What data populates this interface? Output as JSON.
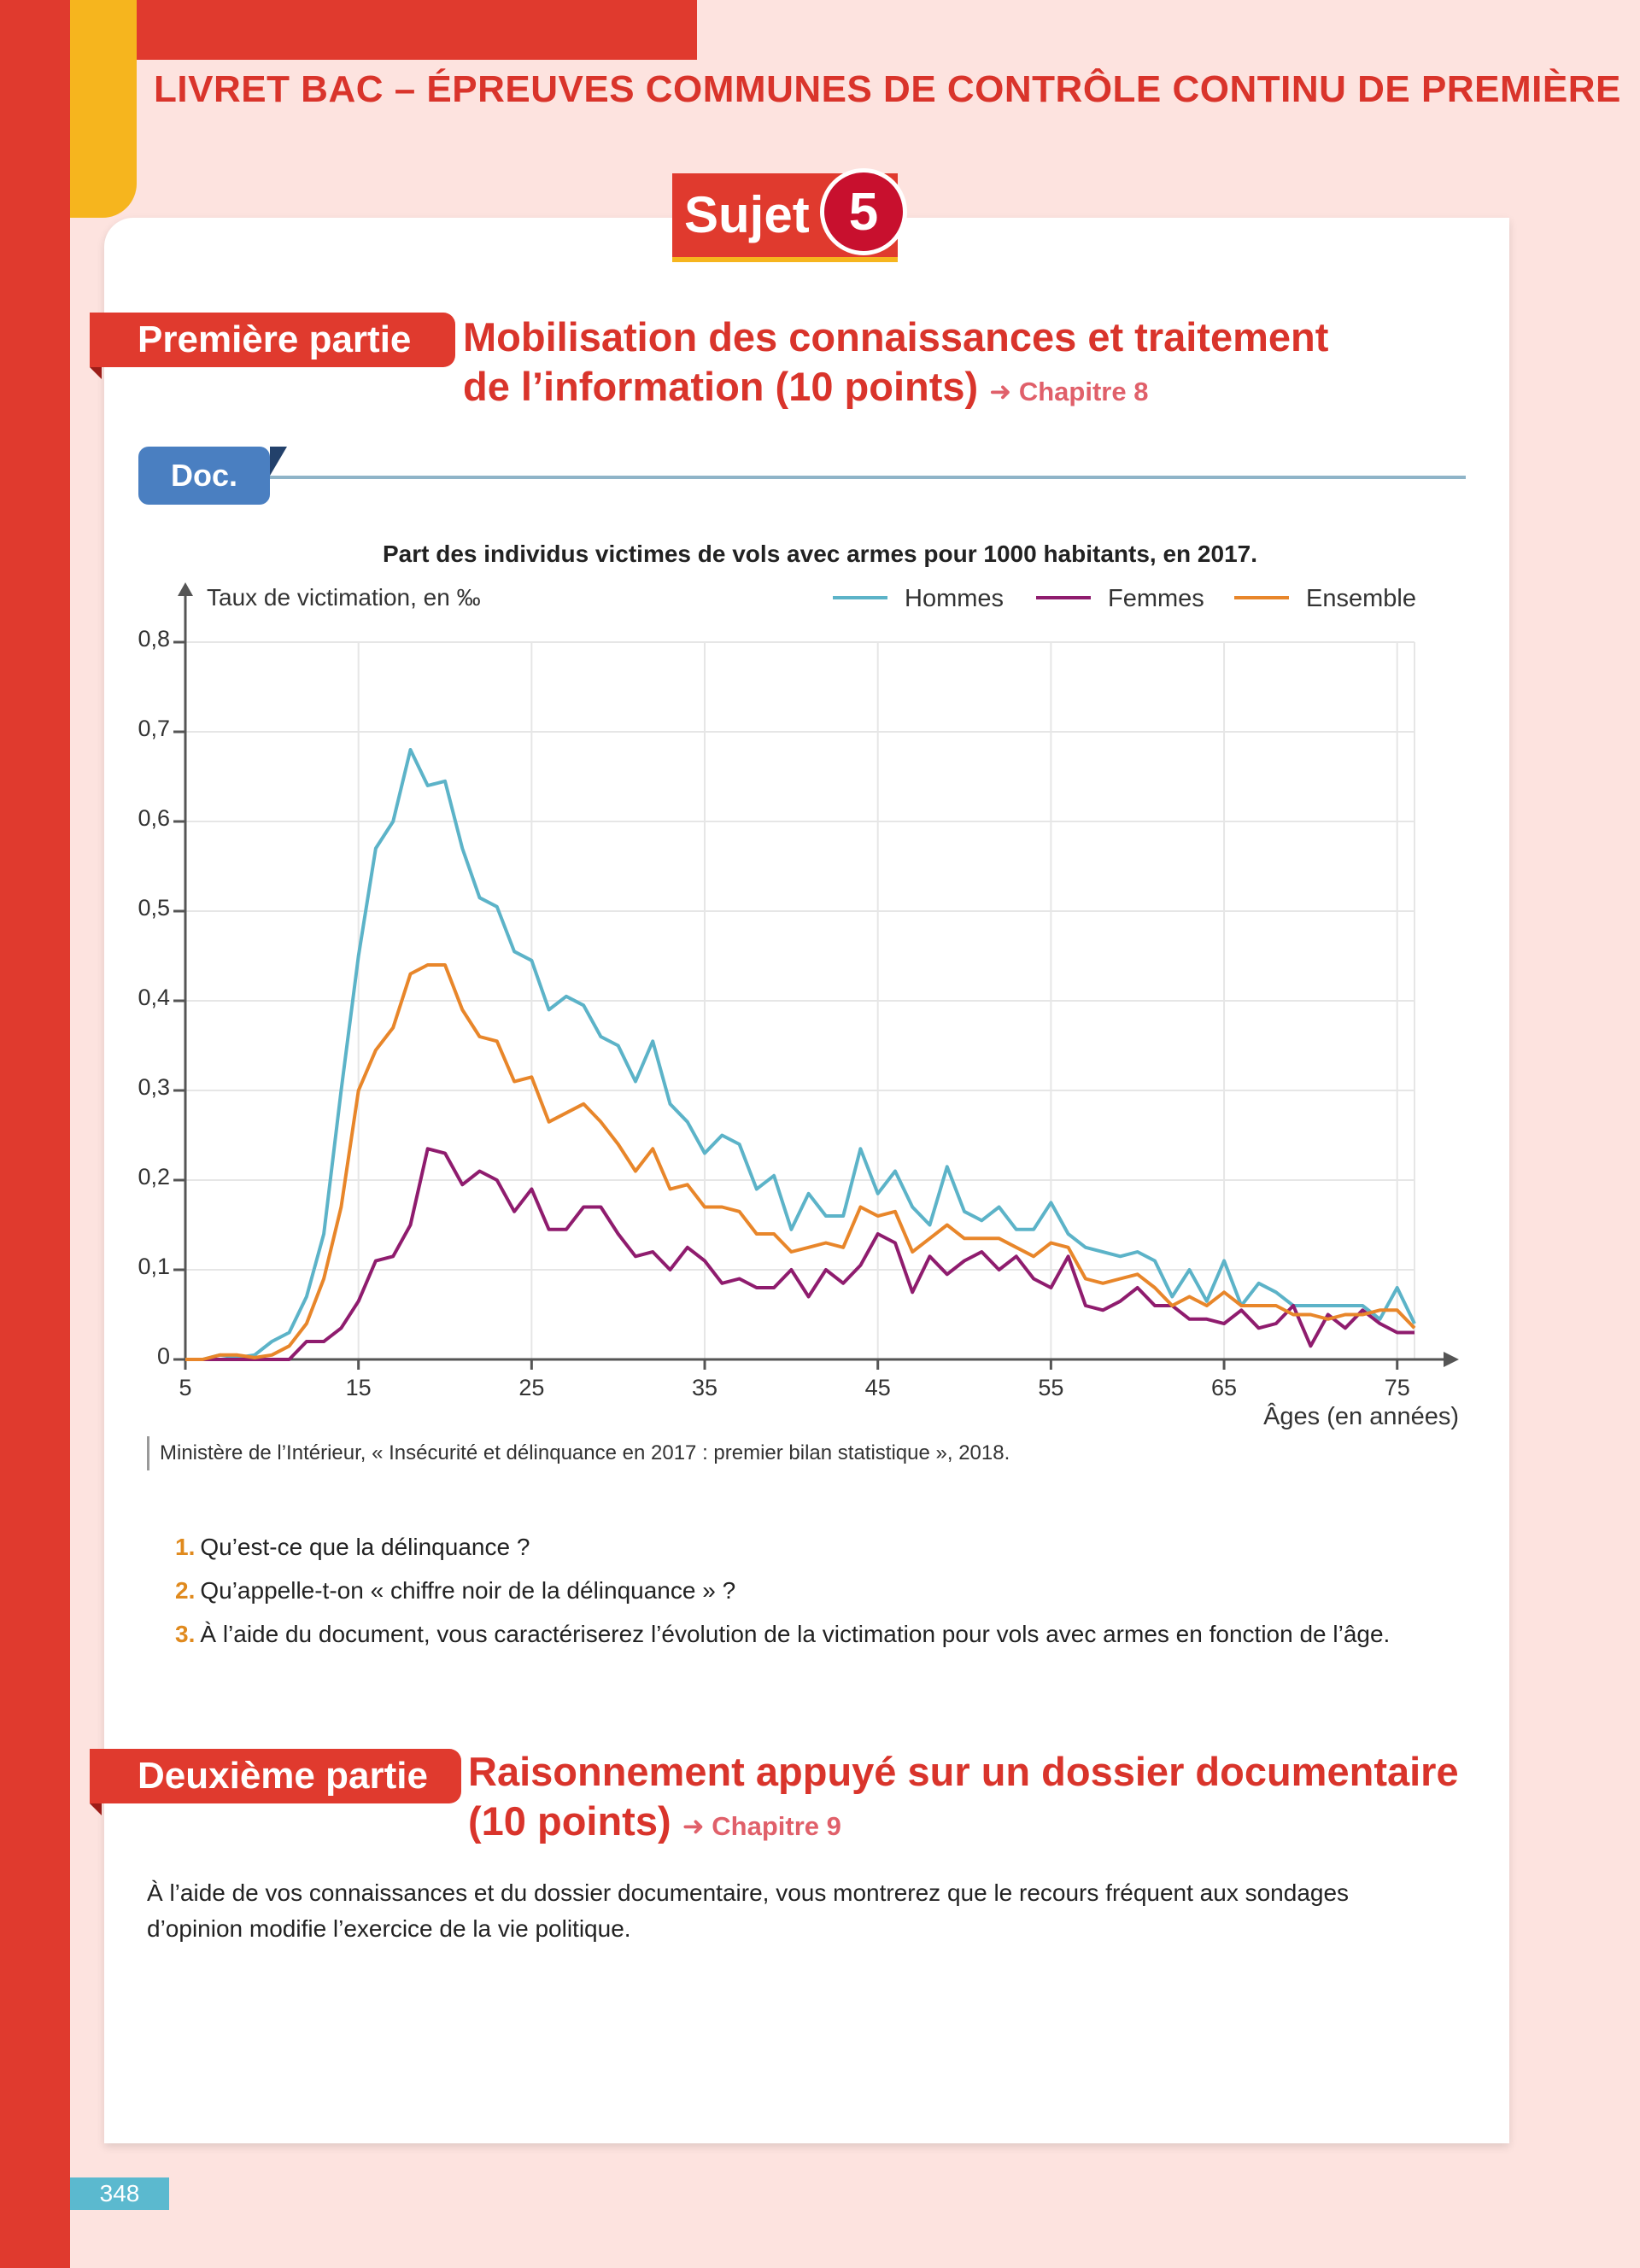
{
  "header": {
    "title": "LIVRET BAC – ÉPREUVES COMMUNES DE CONTRÔLE CONTINU DE PREMIÈRE",
    "sujet_label": "Sujet",
    "sujet_number": "5"
  },
  "part1": {
    "tag": "Première partie",
    "title_line1": "Mobilisation des connaissances et traitement",
    "title_line2": "de l’information (10 points)",
    "chapter": "➜ Chapitre 8"
  },
  "doc": {
    "label": "Doc.",
    "source": "Ministère de l’Intérieur, « Insécurité et délinquance en 2017 : premier bilan statistique », 2018."
  },
  "chart_data": {
    "type": "line",
    "title": "Part des individus victimes de vols avec armes pour 1000 habitants, en 2017.",
    "ylabel": "Taux de victimation, en ‰",
    "xlabel": "Âges (en années)",
    "xlim": [
      5,
      76
    ],
    "ylim": [
      0,
      0.8
    ],
    "x_ticks": [
      "5",
      "15",
      "25",
      "35",
      "45",
      "55",
      "65",
      "75"
    ],
    "y_ticks": [
      "0",
      "0,1",
      "0,2",
      "0,3",
      "0,4",
      "0,5",
      "0,6",
      "0,7",
      "0,8"
    ],
    "grid": true,
    "legend_position": "top-right",
    "series": [
      {
        "name": "Hommes",
        "color": "#5cb3c8",
        "x": [
          5,
          6,
          7,
          8,
          9,
          10,
          11,
          12,
          13,
          14,
          15,
          16,
          17,
          18,
          19,
          20,
          21,
          22,
          23,
          24,
          25,
          26,
          27,
          28,
          29,
          30,
          31,
          32,
          33,
          34,
          35,
          36,
          37,
          38,
          39,
          40,
          41,
          42,
          43,
          44,
          45,
          46,
          47,
          48,
          49,
          50,
          51,
          52,
          53,
          54,
          55,
          56,
          57,
          58,
          59,
          60,
          61,
          62,
          63,
          64,
          65,
          66,
          67,
          68,
          69,
          70,
          71,
          72,
          73,
          74,
          75,
          76
        ],
        "values": [
          0,
          0,
          0.005,
          0.002,
          0.005,
          0.02,
          0.03,
          0.07,
          0.14,
          0.3,
          0.45,
          0.57,
          0.6,
          0.68,
          0.64,
          0.645,
          0.57,
          0.515,
          0.505,
          0.455,
          0.445,
          0.39,
          0.405,
          0.395,
          0.36,
          0.35,
          0.31,
          0.355,
          0.285,
          0.265,
          0.23,
          0.25,
          0.24,
          0.19,
          0.205,
          0.145,
          0.185,
          0.16,
          0.16,
          0.235,
          0.185,
          0.21,
          0.17,
          0.15,
          0.215,
          0.165,
          0.155,
          0.17,
          0.145,
          0.145,
          0.175,
          0.14,
          0.125,
          0.12,
          0.115,
          0.12,
          0.11,
          0.07,
          0.1,
          0.065,
          0.11,
          0.06,
          0.085,
          0.075,
          0.06,
          0.06,
          0.06,
          0.06,
          0.06,
          0.045,
          0.08,
          0.04
        ]
      },
      {
        "name": "Femmes",
        "color": "#8f1c6e",
        "x": [
          5,
          6,
          7,
          8,
          9,
          10,
          11,
          12,
          13,
          14,
          15,
          16,
          17,
          18,
          19,
          20,
          21,
          22,
          23,
          24,
          25,
          26,
          27,
          28,
          29,
          30,
          31,
          32,
          33,
          34,
          35,
          36,
          37,
          38,
          39,
          40,
          41,
          42,
          43,
          44,
          45,
          46,
          47,
          48,
          49,
          50,
          51,
          52,
          53,
          54,
          55,
          56,
          57,
          58,
          59,
          60,
          61,
          62,
          63,
          64,
          65,
          66,
          67,
          68,
          69,
          70,
          71,
          72,
          73,
          74,
          75,
          76
        ],
        "values": [
          0,
          0,
          0,
          0,
          0,
          0,
          0,
          0.02,
          0.02,
          0.035,
          0.065,
          0.11,
          0.115,
          0.15,
          0.235,
          0.23,
          0.195,
          0.21,
          0.2,
          0.165,
          0.19,
          0.145,
          0.145,
          0.17,
          0.17,
          0.14,
          0.115,
          0.12,
          0.1,
          0.125,
          0.11,
          0.085,
          0.09,
          0.08,
          0.08,
          0.1,
          0.07,
          0.1,
          0.085,
          0.105,
          0.14,
          0.13,
          0.075,
          0.115,
          0.095,
          0.11,
          0.12,
          0.1,
          0.115,
          0.09,
          0.08,
          0.115,
          0.06,
          0.055,
          0.065,
          0.08,
          0.06,
          0.06,
          0.045,
          0.045,
          0.04,
          0.055,
          0.035,
          0.04,
          0.06,
          0.015,
          0.05,
          0.035,
          0.055,
          0.04,
          0.03,
          0.03
        ]
      },
      {
        "name": "Ensemble",
        "color": "#e8862a",
        "x": [
          5,
          6,
          7,
          8,
          9,
          10,
          11,
          12,
          13,
          14,
          15,
          16,
          17,
          18,
          19,
          20,
          21,
          22,
          23,
          24,
          25,
          26,
          27,
          28,
          29,
          30,
          31,
          32,
          33,
          34,
          35,
          36,
          37,
          38,
          39,
          40,
          41,
          42,
          43,
          44,
          45,
          46,
          47,
          48,
          49,
          50,
          51,
          52,
          53,
          54,
          55,
          56,
          57,
          58,
          59,
          60,
          61,
          62,
          63,
          64,
          65,
          66,
          67,
          68,
          69,
          70,
          71,
          72,
          73,
          74,
          75,
          76
        ],
        "values": [
          0,
          0,
          0.005,
          0.005,
          0.002,
          0.005,
          0.015,
          0.04,
          0.09,
          0.17,
          0.3,
          0.345,
          0.37,
          0.43,
          0.44,
          0.44,
          0.39,
          0.36,
          0.355,
          0.31,
          0.315,
          0.265,
          0.275,
          0.285,
          0.265,
          0.24,
          0.21,
          0.235,
          0.19,
          0.195,
          0.17,
          0.17,
          0.165,
          0.14,
          0.14,
          0.12,
          0.125,
          0.13,
          0.125,
          0.17,
          0.16,
          0.165,
          0.12,
          0.135,
          0.15,
          0.135,
          0.135,
          0.135,
          0.125,
          0.115,
          0.13,
          0.125,
          0.09,
          0.085,
          0.09,
          0.095,
          0.08,
          0.06,
          0.07,
          0.06,
          0.075,
          0.06,
          0.06,
          0.06,
          0.05,
          0.05,
          0.045,
          0.05,
          0.05,
          0.055,
          0.055,
          0.035
        ]
      }
    ]
  },
  "questions": [
    {
      "num": "1.",
      "text": "Qu’est-ce que la délinquance ?"
    },
    {
      "num": "2.",
      "text": "Qu’appelle-t-on « chiffre noir de la délinquance » ?"
    },
    {
      "num": "3.",
      "text": "À l’aide du document, vous caractériserez l’évolution de la victimation pour vols avec armes en fonction de l’âge."
    }
  ],
  "part2": {
    "tag": "Deuxième partie",
    "title_line1": "Raisonnement appuyé sur un dossier documentaire",
    "title_line2": "(10 points)",
    "chapter": "➜ Chapitre 9",
    "text": "À l’aide de vos connaissances et du dossier documentaire, vous montrerez que le recours fréquent aux sondages d’opinion modifie l’exercice de la vie politique."
  },
  "footer": {
    "page_number": "348"
  }
}
